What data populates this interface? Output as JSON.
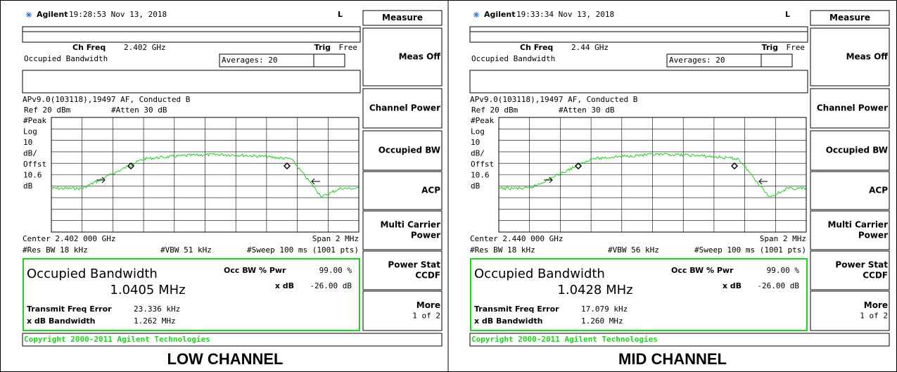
{
  "panels": [
    {
      "brand": "Agilent",
      "time": "19:28:53 Nov 13, 2018",
      "indicator": "L",
      "ch_freq_label": "Ch Freq",
      "ch_freq": "2.402 GHz",
      "trig_label": "Trig",
      "trig": "Free",
      "mode": "Occupied Bandwidth",
      "averages": "Averages: 20",
      "config": "APv9.0(103118),19497 AF, Conducted B",
      "ref": "Ref 20 dBm",
      "atten": "#Atten 30 dB",
      "scale_labels": [
        "#Peak",
        "Log",
        "10",
        "dB/",
        "Offst",
        "10.6",
        "dB"
      ],
      "center": "Center 2.402 000 GHz",
      "span": "Span 2 MHz",
      "res_bw": "#Res BW 18 kHz",
      "vbw": "#VBW 51 kHz",
      "sweep": "#Sweep 100 ms (1001 pts)",
      "result": {
        "title": "Occupied Bandwidth",
        "value": "1.0405 MHz",
        "pwr_label": "Occ BW % Pwr",
        "pwr": "99.00 %",
        "xdb_label": "x dB",
        "xdb": "-26.00 dB",
        "tfe_label": "Transmit Freq Error",
        "tfe": "23.336 kHz",
        "xbw_label": "x dB Bandwidth",
        "xbw": "1.262 MHz"
      },
      "copyright": "Copyright 2000-2011 Agilent Technologies",
      "softkeys": [
        {
          "lines": [
            "Measure"
          ]
        },
        {
          "lines": [
            "Meas Off"
          ]
        },
        {
          "lines": [
            "Channel Power"
          ]
        },
        {
          "lines": [
            "Occupied BW"
          ]
        },
        {
          "lines": [
            "ACP"
          ]
        },
        {
          "lines": [
            "Multi Carrier",
            "Power"
          ]
        },
        {
          "lines": [
            "Power Stat",
            "CCDF"
          ]
        },
        {
          "lines": [
            "More",
            "1 of 2"
          ]
        }
      ],
      "caption": "LOW CHANNEL"
    },
    {
      "brand": "Agilent",
      "time": "19:33:34 Nov 13, 2018",
      "indicator": "L",
      "ch_freq_label": "Ch Freq",
      "ch_freq": "2.44 GHz",
      "trig_label": "Trig",
      "trig": "Free",
      "mode": "Occupied Bandwidth",
      "averages": "Averages: 20",
      "config": "APv9.0(103118),19497 AF, Conducted B",
      "ref": "Ref 20 dBm",
      "atten": "#Atten 30 dB",
      "scale_labels": [
        "#Peak",
        "Log",
        "10",
        "dB/",
        "Offst",
        "10.6",
        "dB"
      ],
      "center": "Center 2.440 000 GHz",
      "span": "Span 2 MHz",
      "res_bw": "#Res BW 18 kHz",
      "vbw": "#VBW 56 kHz",
      "sweep": "#Sweep 100 ms (1001 pts)",
      "result": {
        "title": "Occupied Bandwidth",
        "value": "1.0428 MHz",
        "pwr_label": "Occ BW % Pwr",
        "pwr": "99.00 %",
        "xdb_label": "x dB",
        "xdb": "-26.00 dB",
        "tfe_label": "Transmit Freq Error",
        "tfe": "17.079 kHz",
        "xbw_label": "x dB Bandwidth",
        "xbw": "1.260 MHz"
      },
      "copyright": "Copyright 2000-2011 Agilent Technologies",
      "softkeys": [
        {
          "lines": [
            "Measure"
          ]
        },
        {
          "lines": [
            "Meas Off"
          ]
        },
        {
          "lines": [
            "Channel Power"
          ]
        },
        {
          "lines": [
            "Occupied BW"
          ]
        },
        {
          "lines": [
            "ACP"
          ]
        },
        {
          "lines": [
            "Multi Carrier",
            "Power"
          ]
        },
        {
          "lines": [
            "Power Stat",
            "CCDF"
          ]
        },
        {
          "lines": [
            "More",
            "1 of 2"
          ]
        }
      ],
      "caption": "MID CHANNEL"
    }
  ]
}
